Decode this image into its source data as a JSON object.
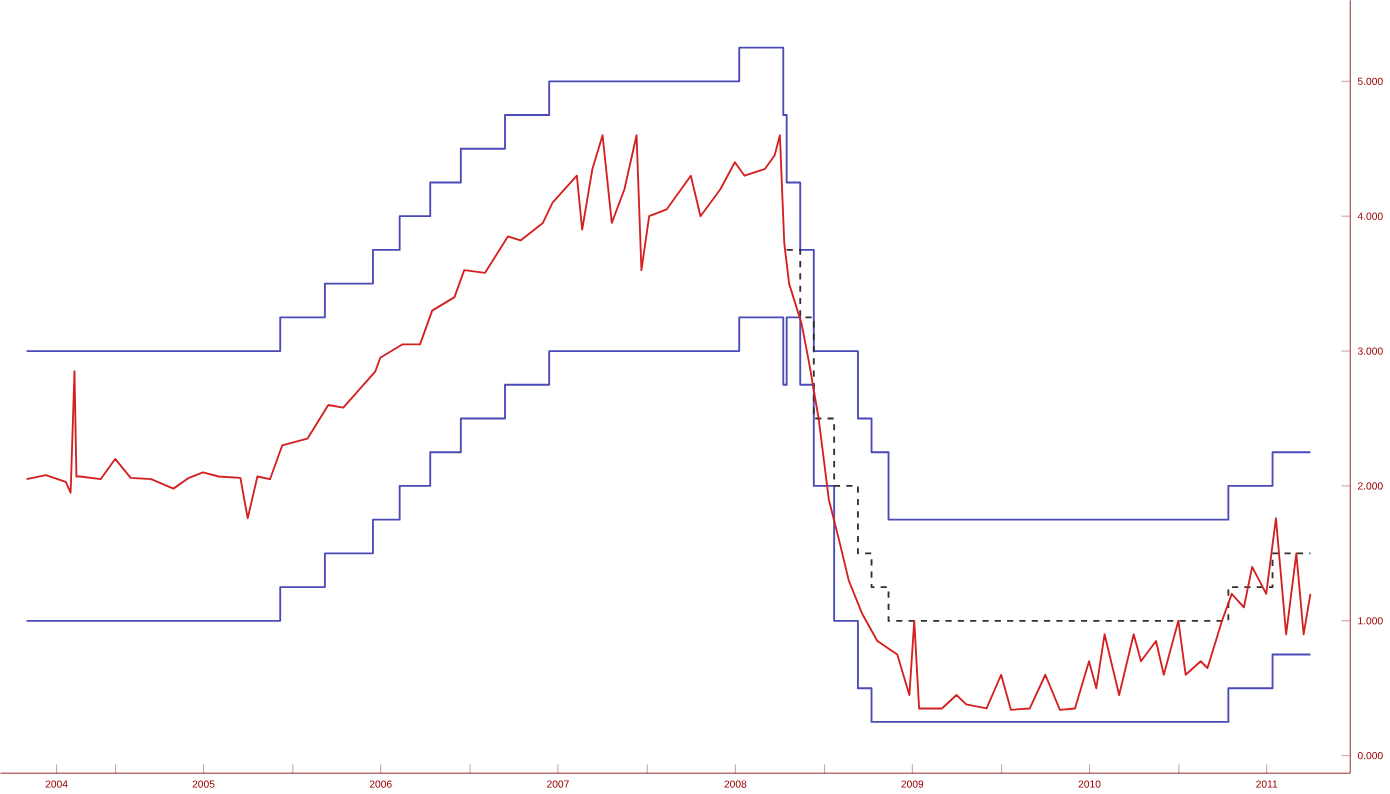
{
  "chart_data": {
    "type": "line",
    "xlim": [
      "2004-05-08",
      "2011-12-20"
    ],
    "xticks": [
      {
        "value": "2004-09-01",
        "label": "2004"
      },
      {
        "value": "2005-01-01",
        "label": null
      },
      {
        "value": "2005-07-01",
        "label": "2005"
      },
      {
        "value": "2006-01-01",
        "label": null
      },
      {
        "value": "2006-07-01",
        "label": "2006"
      },
      {
        "value": "2007-01-01",
        "label": null
      },
      {
        "value": "2007-07-01",
        "label": "2007"
      },
      {
        "value": "2008-01-01",
        "label": null
      },
      {
        "value": "2008-07-01",
        "label": "2008"
      },
      {
        "value": "2009-01-01",
        "label": null
      },
      {
        "value": "2009-07-01",
        "label": "2009"
      },
      {
        "value": "2010-01-01",
        "label": null
      },
      {
        "value": "2010-07-01",
        "label": "2010"
      },
      {
        "value": "2011-01-01",
        "label": null
      },
      {
        "value": "2011-07-01",
        "label": "2011"
      }
    ],
    "ylim": [
      -0.13,
      5.6
    ],
    "yticks": [
      {
        "value": 0,
        "label": "0.000"
      },
      {
        "value": 1,
        "label": "1.000"
      },
      {
        "value": 2,
        "label": "2.000"
      },
      {
        "value": 3,
        "label": "3.000"
      },
      {
        "value": 4,
        "label": "4.000"
      },
      {
        "value": 5,
        "label": "5.000"
      }
    ],
    "series": [
      {
        "type": "step",
        "color": "#4a4ab8",
        "x": [
          "2004-07-01",
          "2005-12-06",
          "2006-03-08",
          "2006-06-15",
          "2006-08-09",
          "2006-10-11",
          "2006-12-13",
          "2007-03-14",
          "2007-06-13",
          "2008-07-09",
          "2008-10-08",
          "2008-10-15",
          "2008-11-12",
          "2008-12-10",
          "2009-03-11",
          "2009-04-08",
          "2009-05-13",
          "2011-04-13",
          "2011-07-13",
          "2011-09-29"
        ],
        "values": [
          3.0,
          3.25,
          3.5,
          3.75,
          4.0,
          4.25,
          4.5,
          4.75,
          5.0,
          5.25,
          4.75,
          4.25,
          3.75,
          3.0,
          2.5,
          2.25,
          1.75,
          2.0,
          2.25,
          2.25
        ]
      },
      {
        "type": "step",
        "color": "#4a4ab8",
        "x": [
          "2004-07-01",
          "2005-12-06",
          "2006-03-08",
          "2006-06-15",
          "2006-08-09",
          "2006-10-11",
          "2006-12-13",
          "2007-03-14",
          "2007-06-13",
          "2008-07-09",
          "2008-10-08",
          "2008-10-15",
          "2008-11-12",
          "2008-12-10",
          "2009-01-21",
          "2009-03-11",
          "2009-04-08",
          "2011-04-13",
          "2011-07-13",
          "2011-09-29"
        ],
        "values": [
          1.0,
          1.25,
          1.5,
          1.75,
          2.0,
          2.25,
          2.5,
          2.75,
          3.0,
          3.25,
          2.75,
          3.25,
          2.75,
          2.0,
          1.0,
          0.5,
          0.25,
          0.5,
          0.75,
          0.75
        ]
      },
      {
        "type": "step",
        "color": "#303030",
        "line_style": "dashed",
        "x": [
          "2008-10-15",
          "2008-11-12",
          "2008-12-10",
          "2009-01-21",
          "2009-03-11",
          "2009-04-08",
          "2009-05-13",
          "2011-04-13",
          "2011-07-13",
          "2011-09-29"
        ],
        "values": [
          3.75,
          3.25,
          2.5,
          2.0,
          1.5,
          1.25,
          1.0,
          1.25,
          1.5,
          1.5
        ]
      },
      {
        "color": "#d42020",
        "x": [
          "2004-07-01",
          "2004-08-10",
          "2004-09-20",
          "2004-09-30",
          "2004-10-08",
          "2004-10-12",
          "2004-10-20",
          "2004-12-01",
          "2004-12-31",
          "2005-02-01",
          "2005-03-15",
          "2005-04-30",
          "2005-06-01",
          "2005-06-30",
          "2005-08-01",
          "2005-09-15",
          "2005-09-30",
          "2005-10-20",
          "2005-11-15",
          "2005-12-10",
          "2006-01-31",
          "2006-03-15",
          "2006-04-15",
          "2006-06-20",
          "2006-06-30",
          "2006-08-15",
          "2006-09-20",
          "2006-10-15",
          "2006-11-30",
          "2006-12-20",
          "2007-02-01",
          "2007-03-20",
          "2007-04-15",
          "2007-05-31",
          "2007-06-20",
          "2007-08-09",
          "2007-08-20",
          "2007-09-10",
          "2007-10-01",
          "2007-10-20",
          "2007-11-15",
          "2007-12-10",
          "2007-12-20",
          "2008-01-05",
          "2008-02-10",
          "2008-03-31",
          "2008-04-20",
          "2008-05-31",
          "2008-06-30",
          "2008-07-20",
          "2008-08-31",
          "2008-09-20",
          "2008-10-01",
          "2008-10-10",
          "2008-10-20",
          "2008-11-15",
          "2008-12-01",
          "2008-12-20",
          "2009-01-10",
          "2009-01-31",
          "2009-02-20",
          "2009-03-20",
          "2009-04-20",
          "2009-05-31",
          "2009-06-25",
          "2009-07-05",
          "2009-07-15",
          "2009-08-31",
          "2009-09-30",
          "2009-10-20",
          "2009-12-01",
          "2009-12-31",
          "2010-01-20",
          "2010-02-28",
          "2010-04-01",
          "2010-05-01",
          "2010-06-01",
          "2010-06-30",
          "2010-07-15",
          "2010-08-01",
          "2010-08-31",
          "2010-09-30",
          "2010-10-15",
          "2010-11-15",
          "2010-12-01",
          "2010-12-31",
          "2011-01-15",
          "2011-02-15",
          "2011-03-01",
          "2011-03-31",
          "2011-04-20",
          "2011-05-15",
          "2011-06-01",
          "2011-06-30",
          "2011-07-20",
          "2011-08-10",
          "2011-08-31",
          "2011-09-15",
          "2011-09-29"
        ],
        "values": [
          2.05,
          2.08,
          2.03,
          1.95,
          2.85,
          2.07,
          2.07,
          2.05,
          2.2,
          2.06,
          2.05,
          1.98,
          2.06,
          2.1,
          2.07,
          2.06,
          1.76,
          2.07,
          2.05,
          2.3,
          2.35,
          2.6,
          2.58,
          2.85,
          2.95,
          3.05,
          3.05,
          3.3,
          3.4,
          3.6,
          3.58,
          3.85,
          3.82,
          3.95,
          4.1,
          4.3,
          3.9,
          4.35,
          4.6,
          3.95,
          4.2,
          4.6,
          3.6,
          4.0,
          4.05,
          4.3,
          4.0,
          4.2,
          4.4,
          4.3,
          4.35,
          4.45,
          4.6,
          3.8,
          3.5,
          3.2,
          2.9,
          2.5,
          1.9,
          1.6,
          1.3,
          1.05,
          0.85,
          0.75,
          0.45,
          1.0,
          0.35,
          0.35,
          0.45,
          0.38,
          0.35,
          0.6,
          0.34,
          0.35,
          0.6,
          0.34,
          0.35,
          0.7,
          0.5,
          0.9,
          0.45,
          0.9,
          0.7,
          0.85,
          0.6,
          1.0,
          0.6,
          0.7,
          0.65,
          1.0,
          1.2,
          1.1,
          1.4,
          1.2,
          1.76,
          0.9,
          1.5,
          0.9,
          1.2
        ]
      }
    ]
  }
}
